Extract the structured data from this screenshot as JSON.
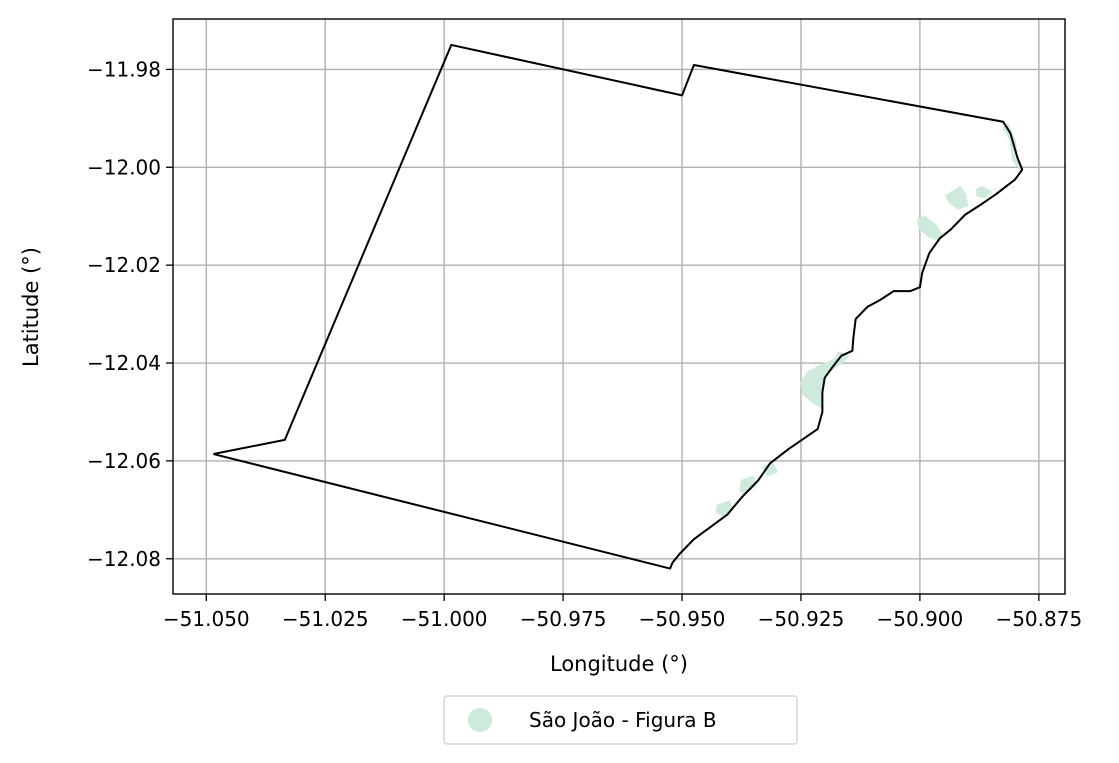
{
  "chart_data": {
    "type": "map",
    "xlabel": "Longitude (°)",
    "ylabel": "Latitude (°)",
    "xlim": [
      -51.057,
      -50.8695
    ],
    "ylim": [
      -12.0872,
      -11.9697
    ],
    "grid": true,
    "xticks": [
      -51.05,
      -51.025,
      -51.0,
      -50.975,
      -50.95,
      -50.925,
      -50.9,
      -50.875
    ],
    "xtick_labels": [
      "−51.050",
      "−51.025",
      "−51.000",
      "−50.975",
      "−50.950",
      "−50.925",
      "−50.900",
      "−50.875"
    ],
    "yticks": [
      -11.98,
      -12.0,
      -12.02,
      -12.04,
      -12.06,
      -12.08
    ],
    "ytick_labels": [
      "−11.98",
      "−12.00",
      "−12.02",
      "−12.04",
      "−12.06",
      "−12.08"
    ],
    "legend": {
      "placement": "bottom-center",
      "entries": [
        {
          "label": "São João  - Figura B",
          "color": "#cdeadb"
        }
      ]
    },
    "boundary": {
      "color": "#000000",
      "points": [
        [
          -51.0485,
          -12.0586
        ],
        [
          -51.0335,
          -12.0557
        ],
        [
          -50.9985,
          -11.975
        ],
        [
          -50.95,
          -11.9853
        ],
        [
          -50.9475,
          -11.9791
        ],
        [
          -50.8825,
          -11.9907
        ],
        [
          -50.881,
          -11.993
        ],
        [
          -50.8795,
          -11.998
        ],
        [
          -50.8785,
          -12.0005
        ],
        [
          -50.88,
          -12.0025
        ],
        [
          -50.884,
          -12.0055
        ],
        [
          -50.887,
          -12.0075
        ],
        [
          -50.8905,
          -12.0097
        ],
        [
          -50.8935,
          -12.0127
        ],
        [
          -50.8958,
          -12.0145
        ],
        [
          -50.898,
          -12.0175
        ],
        [
          -50.8995,
          -12.0215
        ],
        [
          -50.9,
          -12.0245
        ],
        [
          -50.902,
          -12.0253
        ],
        [
          -50.9055,
          -12.0253
        ],
        [
          -50.9085,
          -12.0272
        ],
        [
          -50.911,
          -12.0285
        ],
        [
          -50.9135,
          -12.031
        ],
        [
          -50.914,
          -12.035
        ],
        [
          -50.9142,
          -12.0375
        ],
        [
          -50.9165,
          -12.0385
        ],
        [
          -50.9185,
          -12.041
        ],
        [
          -50.92,
          -12.043
        ],
        [
          -50.9205,
          -12.046
        ],
        [
          -50.9205,
          -12.05
        ],
        [
          -50.9215,
          -12.0535
        ],
        [
          -50.9275,
          -12.0575
        ],
        [
          -50.9315,
          -12.0605
        ],
        [
          -50.934,
          -12.064
        ],
        [
          -50.9375,
          -12.0675
        ],
        [
          -50.9405,
          -12.071
        ],
        [
          -50.944,
          -12.0735
        ],
        [
          -50.9475,
          -12.076
        ],
        [
          -50.9505,
          -12.079
        ],
        [
          -50.952,
          -12.0808
        ],
        [
          -50.9525,
          -12.082
        ],
        [
          -51.0485,
          -12.0586
        ]
      ]
    },
    "features": [
      {
        "name": "São João  - Figura B",
        "color": "#cdeadb",
        "points": [
          [
            -50.8825,
            -11.992
          ],
          [
            -50.8815,
            -11.9912
          ],
          [
            -50.88,
            -11.9945
          ],
          [
            -50.8795,
            -11.9985
          ],
          [
            -50.8788,
            -12.0005
          ],
          [
            -50.8805,
            -11.9985
          ],
          [
            -50.881,
            -11.9945
          ]
        ]
      },
      {
        "name": "São João  - Figura B",
        "color": "#cdeadb",
        "points": [
          [
            -50.888,
            -12.0045
          ],
          [
            -50.887,
            -12.004
          ],
          [
            -50.885,
            -12.005
          ],
          [
            -50.8865,
            -12.0062
          ],
          [
            -50.888,
            -12.0058
          ]
        ]
      },
      {
        "name": "São João  - Figura B",
        "color": "#cdeadb",
        "points": [
          [
            -50.8945,
            -12.0058
          ],
          [
            -50.8915,
            -12.004
          ],
          [
            -50.8905,
            -12.0055
          ],
          [
            -50.89,
            -12.0078
          ],
          [
            -50.892,
            -12.0085
          ],
          [
            -50.8938,
            -12.0072
          ]
        ]
      },
      {
        "name": "São João  - Figura B",
        "color": "#cdeadb",
        "points": [
          [
            -50.9005,
            -12.0107
          ],
          [
            -50.899,
            -12.01
          ],
          [
            -50.8965,
            -12.012
          ],
          [
            -50.8952,
            -12.0142
          ],
          [
            -50.8965,
            -12.0148
          ],
          [
            -50.8985,
            -12.014
          ],
          [
            -50.9,
            -12.0125
          ]
        ]
      },
      {
        "name": "São João  - Figura B",
        "color": "#cdeadb",
        "points": [
          [
            -50.917,
            -12.0378
          ],
          [
            -50.915,
            -12.0385
          ],
          [
            -50.9165,
            -12.04
          ],
          [
            -50.9188,
            -12.0415
          ],
          [
            -50.9202,
            -12.0432
          ],
          [
            -50.9206,
            -12.0465
          ],
          [
            -50.9208,
            -12.049
          ],
          [
            -50.9225,
            -12.048
          ],
          [
            -50.9245,
            -12.0465
          ],
          [
            -50.925,
            -12.044
          ],
          [
            -50.9235,
            -12.0418
          ],
          [
            -50.9205,
            -12.0403
          ],
          [
            -50.918,
            -12.0393
          ]
        ]
      },
      {
        "name": "São João  - Figura B",
        "color": "#cdeadb",
        "points": [
          [
            -50.933,
            -12.0612
          ],
          [
            -50.931,
            -12.0605
          ],
          [
            -50.93,
            -12.0622
          ],
          [
            -50.932,
            -12.063
          ]
        ]
      },
      {
        "name": "São João  - Figura B",
        "color": "#cdeadb",
        "points": [
          [
            -50.9375,
            -12.064
          ],
          [
            -50.935,
            -12.0632
          ],
          [
            -50.9345,
            -12.065
          ],
          [
            -50.9368,
            -12.0668
          ],
          [
            -50.9378,
            -12.066
          ]
        ]
      },
      {
        "name": "São João  - Figura B",
        "color": "#cdeadb",
        "points": [
          [
            -50.9425,
            -12.069
          ],
          [
            -50.94,
            -12.0683
          ],
          [
            -50.9395,
            -12.07
          ],
          [
            -50.9415,
            -12.0712
          ],
          [
            -50.9428,
            -12.0705
          ]
        ]
      }
    ]
  }
}
